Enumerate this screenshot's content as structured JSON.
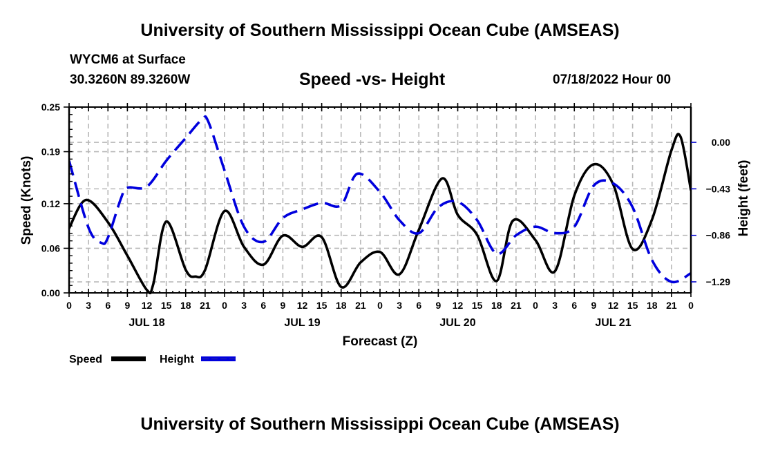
{
  "header": {
    "title": "University of Southern Mississippi Ocean Cube (AMSEAS)",
    "station": "WYCM6 at Surface",
    "coordinates": "30.3260N  89.3260W",
    "subtitle": "Speed -vs- Height",
    "datetime": "07/18/2022 Hour 00"
  },
  "footer": {
    "title": "University of Southern Mississippi Ocean Cube (AMSEAS)"
  },
  "chart_data": {
    "type": "line",
    "title": "Speed -vs- Height",
    "xlabel": "Forecast (Z)",
    "ylabel": "Speed (Knots)",
    "y2label": "Height (feet)",
    "x_hours": [
      0,
      3,
      6,
      9,
      12,
      15,
      18,
      21,
      24,
      27,
      30,
      33,
      36,
      39,
      42,
      45,
      48,
      51,
      54,
      57,
      60,
      63,
      66,
      69,
      72,
      75,
      78,
      81,
      84,
      87,
      90,
      93,
      96
    ],
    "x_tick_labels": [
      "0",
      "3",
      "6",
      "9",
      "12",
      "15",
      "18",
      "21",
      "0",
      "3",
      "6",
      "9",
      "12",
      "15",
      "18",
      "21",
      "0",
      "3",
      "6",
      "9",
      "12",
      "15",
      "18",
      "21",
      "0",
      "3",
      "6",
      "9",
      "12",
      "15",
      "18",
      "21",
      "0"
    ],
    "date_labels": [
      {
        "label": "JUL 18",
        "at_hour": 12
      },
      {
        "label": "JUL 19",
        "at_hour": 36
      },
      {
        "label": "JUL 20",
        "at_hour": 60
      },
      {
        "label": "JUL 21",
        "at_hour": 84
      }
    ],
    "ylim": [
      0.0,
      0.25
    ],
    "y_ticks": [
      0.0,
      0.06,
      0.12,
      0.19,
      0.25
    ],
    "y_tick_labels": [
      "0.00",
      "0.06",
      "0.12",
      "0.19",
      "0.25"
    ],
    "y2lim": [
      -1.392,
      0.326
    ],
    "y2_ticks": [
      0.0,
      -0.43,
      -0.86,
      -1.29
    ],
    "y2_tick_labels": [
      "0.00",
      "−0.43",
      "−0.86",
      "−1.29"
    ],
    "grid": true,
    "legend": "bottom-left",
    "series": [
      {
        "name": "Speed",
        "axis": "left",
        "color": "#000000",
        "style": "solid",
        "points": [
          [
            0,
            0.087
          ],
          [
            2.6,
            0.125
          ],
          [
            6,
            0.095
          ],
          [
            9,
            0.05
          ],
          [
            12,
            0.004
          ],
          [
            13,
            0.012
          ],
          [
            15,
            0.096
          ],
          [
            18,
            0.031
          ],
          [
            19.5,
            0.022
          ],
          [
            21,
            0.031
          ],
          [
            24,
            0.11
          ],
          [
            27,
            0.062
          ],
          [
            30,
            0.038
          ],
          [
            33,
            0.077
          ],
          [
            36,
            0.062
          ],
          [
            39,
            0.075
          ],
          [
            42,
            0.008
          ],
          [
            45,
            0.041
          ],
          [
            48,
            0.055
          ],
          [
            51,
            0.025
          ],
          [
            54,
            0.085
          ],
          [
            57.6,
            0.154
          ],
          [
            60,
            0.105
          ],
          [
            63,
            0.078
          ],
          [
            66,
            0.016
          ],
          [
            68.5,
            0.097
          ],
          [
            72,
            0.071
          ],
          [
            75,
            0.029
          ],
          [
            78,
            0.131
          ],
          [
            81,
            0.173
          ],
          [
            84,
            0.146
          ],
          [
            87,
            0.059
          ],
          [
            90,
            0.099
          ],
          [
            93,
            0.192
          ],
          [
            94.4,
            0.21
          ],
          [
            96,
            0.138
          ]
        ]
      },
      {
        "name": "Height",
        "axis": "right",
        "color": "#0000dd",
        "style": "dashed",
        "points": [
          [
            0,
            -0.17
          ],
          [
            3,
            -0.79
          ],
          [
            5,
            -0.93
          ],
          [
            6,
            -0.88
          ],
          [
            8,
            -0.52
          ],
          [
            9,
            -0.42
          ],
          [
            12,
            -0.41
          ],
          [
            15,
            -0.17
          ],
          [
            18,
            0.04
          ],
          [
            20.5,
            0.21
          ],
          [
            21.5,
            0.19
          ],
          [
            24,
            -0.26
          ],
          [
            27,
            -0.78
          ],
          [
            30,
            -0.92
          ],
          [
            33,
            -0.7
          ],
          [
            36,
            -0.62
          ],
          [
            39,
            -0.56
          ],
          [
            42,
            -0.58
          ],
          [
            44.5,
            -0.29
          ],
          [
            48,
            -0.46
          ],
          [
            51,
            -0.72
          ],
          [
            54,
            -0.84
          ],
          [
            57,
            -0.6
          ],
          [
            60,
            -0.55
          ],
          [
            63,
            -0.72
          ],
          [
            66,
            -1.03
          ],
          [
            69,
            -0.86
          ],
          [
            72,
            -0.78
          ],
          [
            75,
            -0.84
          ],
          [
            78,
            -0.78
          ],
          [
            81,
            -0.4
          ],
          [
            84,
            -0.38
          ],
          [
            87,
            -0.6
          ],
          [
            90,
            -1.09
          ],
          [
            93,
            -1.29
          ],
          [
            96,
            -1.21
          ]
        ]
      }
    ]
  }
}
